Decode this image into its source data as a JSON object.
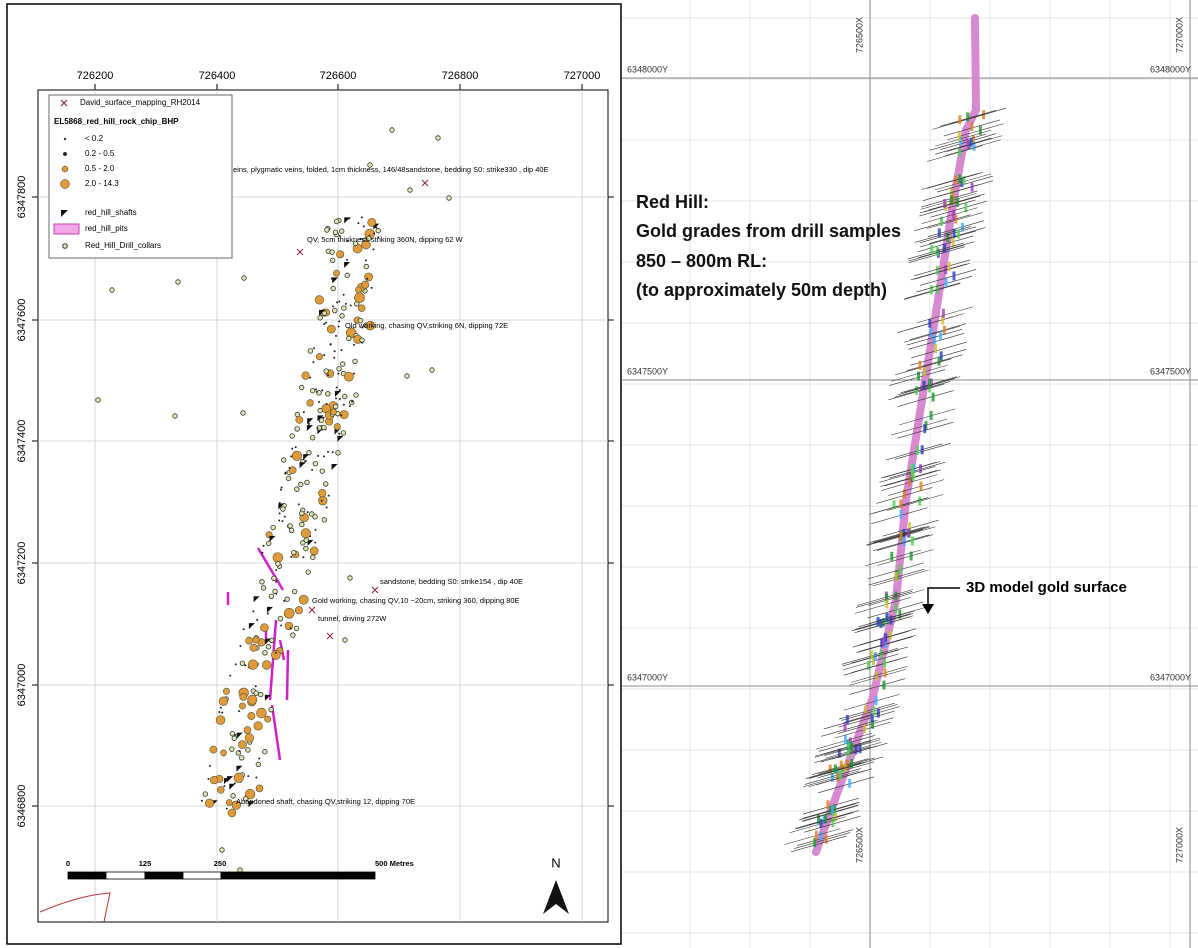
{
  "left_map": {
    "x_labels": [
      "726200",
      "726400",
      "726600",
      "726800",
      "727000"
    ],
    "y_labels": [
      "6347800",
      "6347600",
      "6347400",
      "6347200",
      "6347000",
      "6346800"
    ],
    "legend": {
      "mapping": "David_surface_mapping_RH2014",
      "rock_chip_title": "EL5868_red_hill_rock_chip_BHP",
      "classes": [
        "< 0.2",
        "0.2 - 0.5",
        "0.5 - 2.0",
        "2.0 - 14.3"
      ],
      "shafts": "red_hill_shafts",
      "pits": "red_hill_pits",
      "collars": "Red_Hill_Drill_collars"
    },
    "annotations": [
      "eins, plygmatic veins, folded, 1cm thickness, 146/48sandstone, bedding S0: strike330 , dip 40E",
      "QV, 5cm thickness striking 360N, dipping 62 W",
      "Old working, chasing QV,striking 6N, dipping 72E",
      "sandstone, bedding S0: strike154 , dip 40E",
      "Gold working, chasing QV,10 ~20cm, striking 360, dipping 80E",
      "tunnel, driving 272W",
      "Abandoned shaft, chasing QV,striking 12, dipping 70E"
    ],
    "scale_bar": [
      "0",
      "125",
      "250",
      "500 Metres"
    ],
    "north": "N"
  },
  "right_map": {
    "x_labels_top": [
      "726500X",
      "727000X"
    ],
    "x_labels_bottom": [
      "726500X",
      "727000X"
    ],
    "y_labels_left": [
      "6348000Y",
      "6347500Y",
      "6347000Y"
    ],
    "y_labels_right": [
      "6348000Y",
      "6347500Y",
      "6347000Y"
    ],
    "title_lines": [
      "Red Hill:",
      "Gold grades from drill samples",
      "850 – 800m RL:",
      "(to approximately 50m depth)"
    ],
    "callout": "3D model gold surface"
  }
}
